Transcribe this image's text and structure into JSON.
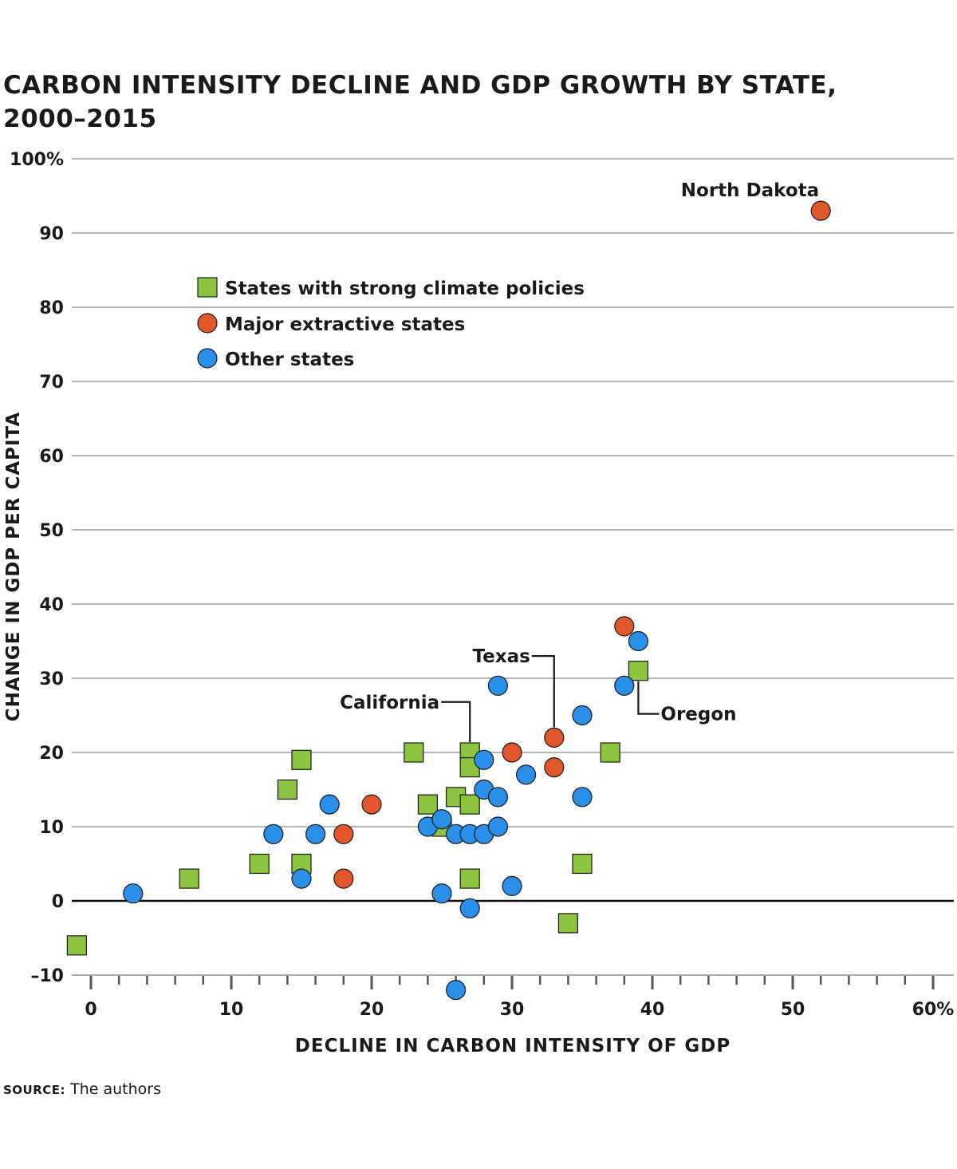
{
  "chart_data": {
    "type": "scatter",
    "title": "CARBON INTENSITY DECLINE AND GDP GROWTH BY STATE, 2000–2015",
    "xlabel": "DECLINE IN CARBON INTENSITY OF GDP",
    "ylabel": "CHANGE IN GDP PER CAPITA",
    "xlim": [
      -1,
      60
    ],
    "ylim": [
      -10,
      100
    ],
    "x_ticks": [
      0,
      10,
      20,
      30,
      40,
      50,
      60
    ],
    "x_tick_labels": [
      "0",
      "10",
      "20",
      "30",
      "40",
      "50",
      "60%"
    ],
    "y_ticks": [
      -10,
      0,
      10,
      20,
      30,
      40,
      50,
      60,
      70,
      80,
      90,
      100
    ],
    "y_tick_labels": [
      "–10",
      "0",
      "10",
      "20",
      "30",
      "40",
      "50",
      "60",
      "70",
      "80",
      "90",
      "100%"
    ],
    "grid": "horizontal",
    "legend_position": "top-left",
    "series": [
      {
        "name": "States with strong climate policies",
        "marker": "square",
        "color": "#8cc43f",
        "points": [
          [
            -1,
            -6
          ],
          [
            7,
            3
          ],
          [
            12,
            5
          ],
          [
            14,
            15
          ],
          [
            15,
            19
          ],
          [
            15,
            5
          ],
          [
            23,
            20
          ],
          [
            24,
            13
          ],
          [
            25,
            10
          ],
          [
            26,
            14
          ],
          [
            27,
            20
          ],
          [
            27,
            18
          ],
          [
            27,
            13
          ],
          [
            27,
            3
          ],
          [
            34,
            -3
          ],
          [
            35,
            5
          ],
          [
            37,
            20
          ],
          [
            39,
            31
          ]
        ]
      },
      {
        "name": "Major extractive states",
        "marker": "circle",
        "color": "#e1562a",
        "points": [
          [
            18,
            9
          ],
          [
            18,
            3
          ],
          [
            20,
            13
          ],
          [
            30,
            20
          ],
          [
            33,
            22
          ],
          [
            33,
            18
          ],
          [
            38,
            37
          ],
          [
            52,
            93
          ]
        ]
      },
      {
        "name": "Other states",
        "marker": "circle",
        "color": "#2a8fe8",
        "points": [
          [
            3,
            1
          ],
          [
            13,
            9
          ],
          [
            15,
            3
          ],
          [
            16,
            9
          ],
          [
            17,
            13
          ],
          [
            24,
            10
          ],
          [
            25,
            11
          ],
          [
            25,
            1
          ],
          [
            26,
            9
          ],
          [
            26,
            -12
          ],
          [
            27,
            9
          ],
          [
            27,
            -1
          ],
          [
            28,
            19
          ],
          [
            28,
            15
          ],
          [
            28,
            9
          ],
          [
            29,
            29
          ],
          [
            29,
            14
          ],
          [
            29,
            10
          ],
          [
            30,
            2
          ],
          [
            31,
            17
          ],
          [
            35,
            25
          ],
          [
            35,
            14
          ],
          [
            38,
            29
          ],
          [
            39,
            35
          ]
        ]
      }
    ],
    "annotations": [
      {
        "text": "North Dakota",
        "x": 52,
        "y": 93
      },
      {
        "text": "Texas",
        "x": 33,
        "y": 22
      },
      {
        "text": "California",
        "x": 27,
        "y": 20
      },
      {
        "text": "Oregon",
        "x": 39,
        "y": 31
      }
    ]
  },
  "source": {
    "label": "SOURCE:",
    "text": "The authors"
  }
}
